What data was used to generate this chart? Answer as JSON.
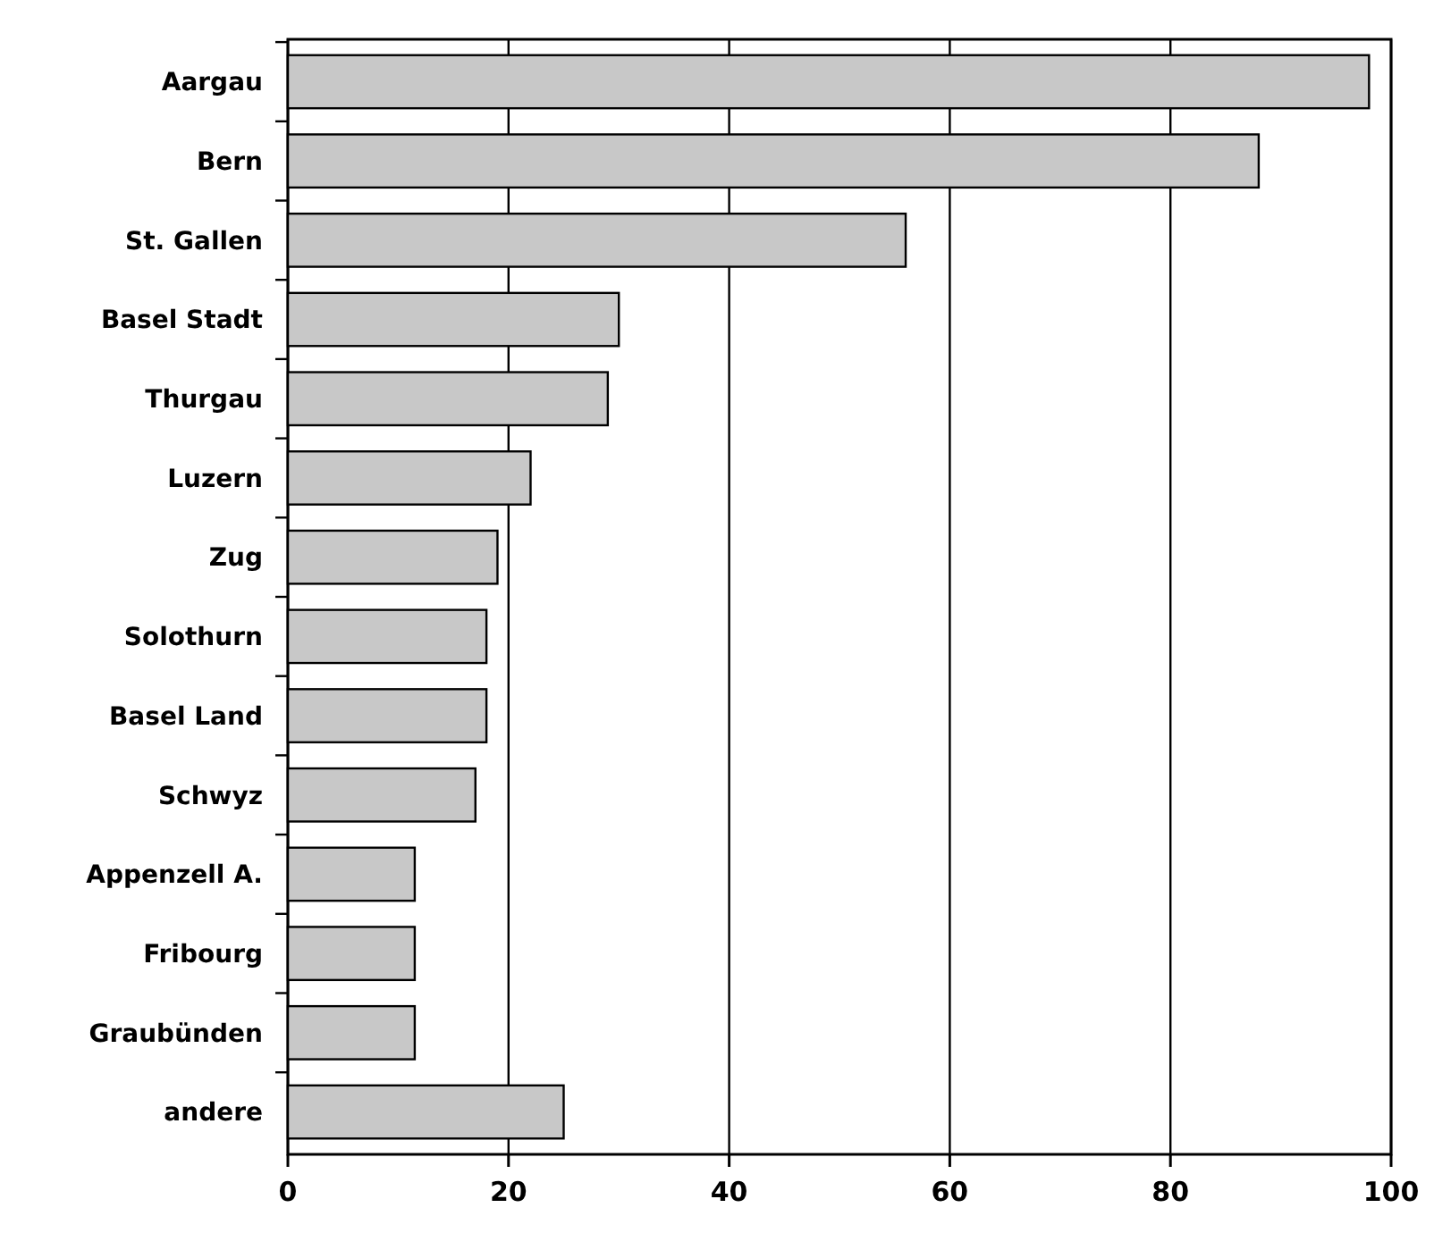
{
  "chart_data": {
    "type": "bar",
    "orientation": "horizontal",
    "categories": [
      "Aargau",
      "Bern",
      "St. Gallen",
      "Basel Stadt",
      "Thurgau",
      "Luzern",
      "Zug",
      "Solothurn",
      "Basel Land",
      "Schwyz",
      "Appenzell A.",
      "Fribourg",
      "Graubünden",
      "andere"
    ],
    "values": [
      98,
      88,
      56,
      30,
      29,
      22,
      19,
      18,
      18,
      17,
      11.5,
      11.5,
      11.5,
      25
    ],
    "color": "#c8c8c8",
    "xlim": [
      0,
      100
    ],
    "xticks": [
      0,
      20,
      40,
      60,
      80,
      100
    ],
    "grid": "x"
  }
}
